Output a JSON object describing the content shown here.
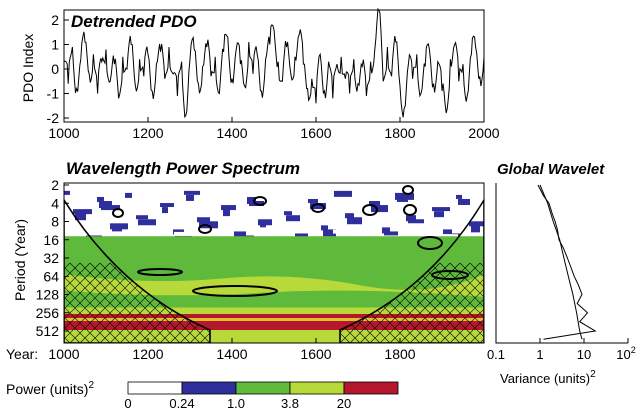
{
  "chart_data": [
    {
      "type": "line",
      "title": "Detrended PDO",
      "ylabel": "PDO Index",
      "xlim": [
        1000,
        2000
      ],
      "ylim": [
        -2,
        2
      ],
      "xticks": [
        1000,
        1200,
        1400,
        1600,
        1800,
        2000
      ],
      "yticks": [
        -2,
        -1,
        0,
        1,
        2
      ],
      "series": [
        {
          "x": [
            1000,
            1010,
            1020,
            1030,
            1040,
            1050,
            1060,
            1070,
            1080,
            1090,
            1100,
            1110,
            1120,
            1130,
            1140,
            1150,
            1160,
            1170,
            1180,
            1190,
            1200,
            1210,
            1220,
            1230,
            1240,
            1250,
            1260,
            1270,
            1280,
            1290,
            1300,
            1310,
            1320,
            1330,
            1340,
            1350,
            1360,
            1370,
            1380,
            1390,
            1400,
            1410,
            1420,
            1430,
            1440,
            1450,
            1460,
            1470,
            1480,
            1490,
            1500,
            1510,
            1520,
            1530,
            1540,
            1550,
            1560,
            1570,
            1580,
            1590,
            1600,
            1610,
            1620,
            1630,
            1640,
            1650,
            1660,
            1670,
            1680,
            1690,
            1700,
            1710,
            1720,
            1730,
            1740,
            1750,
            1760,
            1770,
            1780,
            1790,
            1800,
            1810,
            1820,
            1830,
            1840,
            1850,
            1860,
            1870,
            1880,
            1890,
            1900,
            1910,
            1920,
            1930,
            1940,
            1950,
            1960,
            1970,
            1980,
            1990,
            2000
          ],
          "values": [
            0.3,
            -0.6,
            0.9,
            -0.8,
            0.4,
            1.1,
            -0.2,
            0.6,
            -1.0,
            0.3,
            0.8,
            -0.5,
            0.2,
            -1.2,
            0.5,
            0.0,
            1.0,
            -0.7,
            0.4,
            -0.3,
            0.6,
            -0.9,
            0.2,
            0.7,
            -0.4,
            0.9,
            -0.2,
            -1.1,
            0.3,
            -1.9,
            0.4,
            0.8,
            -0.6,
            0.1,
            0.9,
            -0.3,
            0.5,
            -1.0,
            0.7,
            1.3,
            -0.4,
            0.8,
            0.2,
            -0.7,
            1.1,
            -0.2,
            0.6,
            -0.9,
            0.4,
            1.0,
            1.6,
            0.3,
            -0.5,
            0.9,
            -0.2,
            0.5,
            1.4,
            0.2,
            -0.8,
            -0.4,
            -1.4,
            0.6,
            -0.9,
            0.3,
            -1.2,
            0.2,
            0.5,
            -0.4,
            -1.0,
            0.4,
            -0.6,
            0.1,
            -1.1,
            0.3,
            0.8,
            2.4,
            -0.5,
            0.9,
            -0.3,
            1.1,
            -0.7,
            -1.6,
            0.2,
            -0.4,
            0.6,
            -1.0,
            0.1,
            0.8,
            -0.6,
            0.3,
            -0.9,
            -1.8,
            0.4,
            1.0,
            -0.5,
            0.2,
            -1.1,
            0.6,
            0.9,
            -0.3,
            0.5
          ]
        }
      ]
    },
    {
      "type": "heatmap",
      "title": "Wavelength Power Spectrum",
      "ylabel": "Period (Year)",
      "xlabel_prefix": "Year:",
      "xlim": [
        1000,
        2000
      ],
      "xticks": [
        1000,
        1200,
        1400,
        1600,
        1800
      ],
      "yticks": [
        2,
        4,
        8,
        16,
        32,
        64,
        128,
        256,
        512
      ],
      "log_y": true,
      "colorbar": {
        "label_text": "Power (units)",
        "label_sup": "2",
        "boundaries": [
          "0",
          "0.24",
          "1.0",
          "3.8",
          "20"
        ],
        "colors": [
          "#ffffff",
          "#2e2e9c",
          "#5fba3c",
          "#b8d93a",
          "#b5182c"
        ]
      },
      "description_bands": [
        {
          "period_range": [
            2,
            16
          ],
          "level": "mixed white/blue/green, spotty"
        },
        {
          "period_range": [
            16,
            64
          ],
          "level": "green with blue/white patches"
        },
        {
          "period_range": [
            64,
            256
          ],
          "level": "green and light green"
        },
        {
          "period_range": [
            256,
            512
          ],
          "level": "light green with red band"
        }
      ]
    },
    {
      "type": "line",
      "title": "Global Wavelet",
      "xlabel_text": "Variance (units)",
      "xlabel_sup": "2",
      "log_x": true,
      "xticks": [
        "0.1",
        "1",
        "10",
        "10"
      ],
      "xtick_sup_last": "2",
      "series": [
        {
          "period": [
            2,
            3,
            4,
            6,
            8,
            11,
            16,
            22,
            32,
            45,
            64,
            90,
            128,
            180,
            256,
            360,
            512,
            700
          ],
          "variance": [
            0.9,
            1.2,
            1.6,
            1.9,
            2.2,
            2.5,
            2.7,
            3.4,
            4.2,
            5.0,
            6.0,
            7.5,
            9.0,
            7.0,
            12.0,
            8.0,
            18.0,
            1.2
          ]
        },
        {
          "period": [
            2,
            4,
            8,
            16,
            32,
            64,
            128,
            256,
            512,
            700
          ],
          "variance": [
            1.0,
            1.5,
            2.0,
            2.8,
            3.5,
            4.4,
            5.6,
            6.8,
            8.0,
            9.0
          ]
        }
      ]
    }
  ]
}
